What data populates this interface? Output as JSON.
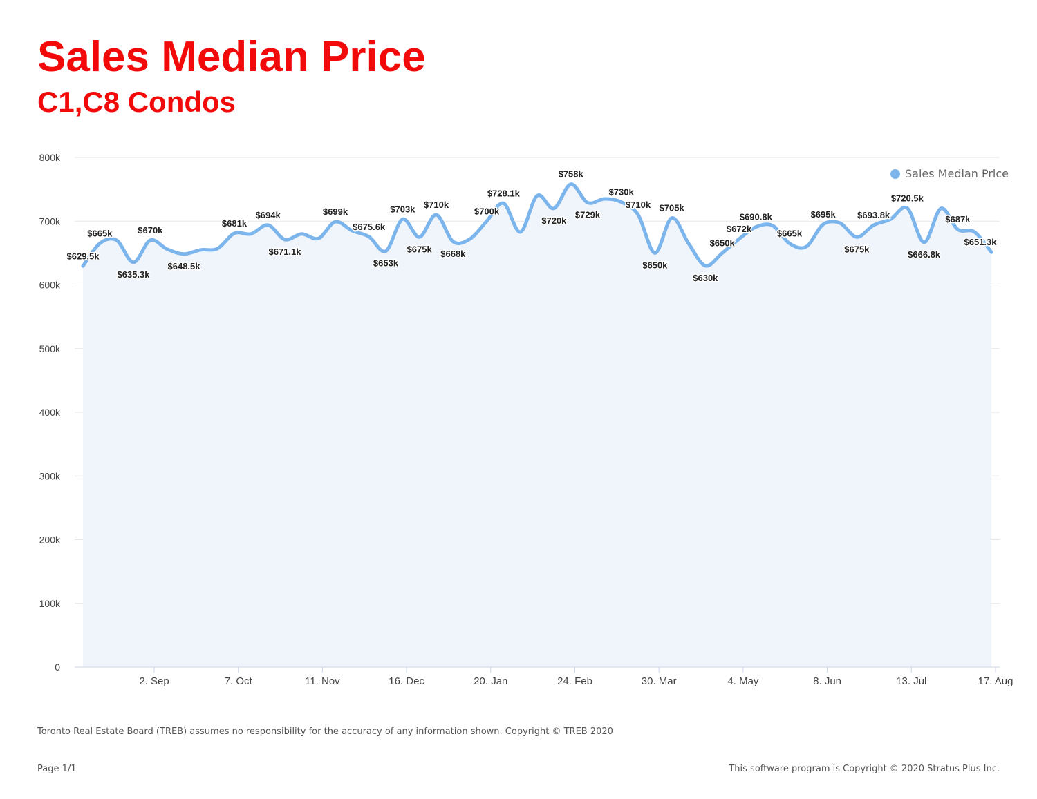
{
  "header": {
    "title": "Sales Median Price",
    "subtitle": "C1,C8 Condos"
  },
  "legend": {
    "label": "Sales Median Price",
    "color": "#7cb5ec"
  },
  "footer": {
    "disclaimer": "Toronto Real Estate Board (TREB) assumes no responsibility for the accuracy of any information shown. Copyright © TREB 2020",
    "page": "Page 1/1",
    "software": "This software program is Copyright © 2020 Stratus Plus Inc."
  },
  "colors": {
    "title": "#f20a0a",
    "line": "#7cb5ec",
    "area_fill": "#f0f5fc",
    "grid": "#e6e6e6"
  },
  "chart_data": {
    "type": "area",
    "title": "Sales Median Price",
    "subtitle": "C1,C8 Condos",
    "xlabel": "",
    "ylabel": "",
    "ylim": [
      0,
      800000
    ],
    "yticks": [
      {
        "value": 0,
        "label": "0"
      },
      {
        "value": 100000,
        "label": "100k"
      },
      {
        "value": 200000,
        "label": "200k"
      },
      {
        "value": 300000,
        "label": "300k"
      },
      {
        "value": 400000,
        "label": "400k"
      },
      {
        "value": 500000,
        "label": "500k"
      },
      {
        "value": 600000,
        "label": "600k"
      },
      {
        "value": 700000,
        "label": "700k"
      },
      {
        "value": 800000,
        "label": "800k"
      }
    ],
    "xlim": [
      "2019-08-19",
      "2020-08-18"
    ],
    "xticks": [
      {
        "date": "2019-09-02",
        "label": "2. Sep"
      },
      {
        "date": "2019-10-07",
        "label": "7. Oct"
      },
      {
        "date": "2019-11-11",
        "label": "11. Nov"
      },
      {
        "date": "2019-12-16",
        "label": "16. Dec"
      },
      {
        "date": "2020-01-20",
        "label": "20. Jan"
      },
      {
        "date": "2020-02-24",
        "label": "24. Feb"
      },
      {
        "date": "2020-03-30",
        "label": "30. Mar"
      },
      {
        "date": "2020-05-04",
        "label": "4. May"
      },
      {
        "date": "2020-06-08",
        "label": "8. Jun"
      },
      {
        "date": "2020-07-13",
        "label": "13. Jul"
      },
      {
        "date": "2020-08-17",
        "label": "17. Aug"
      }
    ],
    "grid": true,
    "legend_position": "top-right",
    "series": [
      {
        "name": "Sales Median Price",
        "points": [
          {
            "x": "2019-08-22",
            "y": 629500,
            "label": "$629.5k"
          },
          {
            "x": "2019-08-29",
            "y": 665000,
            "label": "$665k"
          },
          {
            "x": "2019-09-05",
            "y": 670000,
            "label": ""
          },
          {
            "x": "2019-09-12",
            "y": 635300,
            "label": "$635.3k"
          },
          {
            "x": "2019-09-19",
            "y": 670000,
            "label": "$670k"
          },
          {
            "x": "2019-09-26",
            "y": 656000,
            "label": ""
          },
          {
            "x": "2019-10-03",
            "y": 648500,
            "label": "$648.5k"
          },
          {
            "x": "2019-10-10",
            "y": 655000,
            "label": ""
          },
          {
            "x": "2019-10-17",
            "y": 657000,
            "label": ""
          },
          {
            "x": "2019-10-24",
            "y": 681000,
            "label": "$681k"
          },
          {
            "x": "2019-10-31",
            "y": 680000,
            "label": ""
          },
          {
            "x": "2019-11-07",
            "y": 694000,
            "label": "$694k"
          },
          {
            "x": "2019-11-14",
            "y": 671100,
            "label": "$671.1k"
          },
          {
            "x": "2019-11-21",
            "y": 680000,
            "label": ""
          },
          {
            "x": "2019-11-28",
            "y": 673000,
            "label": ""
          },
          {
            "x": "2019-12-05",
            "y": 699000,
            "label": "$699k"
          },
          {
            "x": "2019-12-12",
            "y": 685000,
            "label": ""
          },
          {
            "x": "2019-12-19",
            "y": 675600,
            "label": "$675.6k"
          },
          {
            "x": "2019-12-26",
            "y": 653000,
            "label": "$653k"
          },
          {
            "x": "2020-01-02",
            "y": 703000,
            "label": "$703k"
          },
          {
            "x": "2020-01-09",
            "y": 675000,
            "label": "$675k"
          },
          {
            "x": "2020-01-16",
            "y": 710000,
            "label": "$710k"
          },
          {
            "x": "2020-01-23",
            "y": 668000,
            "label": "$668k"
          },
          {
            "x": "2020-01-30",
            "y": 672000,
            "label": ""
          },
          {
            "x": "2020-02-06",
            "y": 700000,
            "label": "$700k"
          },
          {
            "x": "2020-02-13",
            "y": 728100,
            "label": "$728.1k"
          },
          {
            "x": "2020-02-20",
            "y": 683000,
            "label": ""
          },
          {
            "x": "2020-02-27",
            "y": 740000,
            "label": ""
          },
          {
            "x": "2020-03-05",
            "y": 720000,
            "label": "$720k"
          },
          {
            "x": "2020-03-12",
            "y": 758000,
            "label": "$758k"
          },
          {
            "x": "2020-03-19",
            "y": 729000,
            "label": "$729k"
          },
          {
            "x": "2020-03-26",
            "y": 735000,
            "label": ""
          },
          {
            "x": "2020-04-02",
            "y": 730000,
            "label": "$730k"
          },
          {
            "x": "2020-04-09",
            "y": 710000,
            "label": "$710k"
          },
          {
            "x": "2020-04-16",
            "y": 650000,
            "label": "$650k"
          },
          {
            "x": "2020-04-23",
            "y": 705000,
            "label": "$705k"
          },
          {
            "x": "2020-04-30",
            "y": 665000,
            "label": ""
          },
          {
            "x": "2020-05-07",
            "y": 630000,
            "label": "$630k"
          },
          {
            "x": "2020-05-14",
            "y": 650000,
            "label": "$650k"
          },
          {
            "x": "2020-05-21",
            "y": 672000,
            "label": "$672k"
          },
          {
            "x": "2020-05-28",
            "y": 690800,
            "label": "$690.8k"
          },
          {
            "x": "2020-06-04",
            "y": 693000,
            "label": ""
          },
          {
            "x": "2020-06-11",
            "y": 665000,
            "label": "$665k"
          },
          {
            "x": "2020-06-18",
            "y": 660000,
            "label": ""
          },
          {
            "x": "2020-06-25",
            "y": 695000,
            "label": "$695k"
          },
          {
            "x": "2020-07-02",
            "y": 697000,
            "label": ""
          },
          {
            "x": "2020-07-09",
            "y": 675000,
            "label": "$675k"
          },
          {
            "x": "2020-07-16",
            "y": 693800,
            "label": "$693.8k"
          },
          {
            "x": "2020-07-23",
            "y": 703000,
            "label": ""
          },
          {
            "x": "2020-07-30",
            "y": 720500,
            "label": "$720.5k"
          },
          {
            "x": "2020-08-06",
            "y": 666800,
            "label": "$666.8k"
          },
          {
            "x": "2020-08-13",
            "y": 720000,
            "label": ""
          },
          {
            "x": "2020-08-20",
            "y": 687000,
            "label": "$687k"
          },
          {
            "x": "2020-08-27",
            "y": 683000,
            "label": ""
          },
          {
            "x": "2020-09-03",
            "y": 651300,
            "label": "$651.3k"
          }
        ]
      }
    ]
  }
}
